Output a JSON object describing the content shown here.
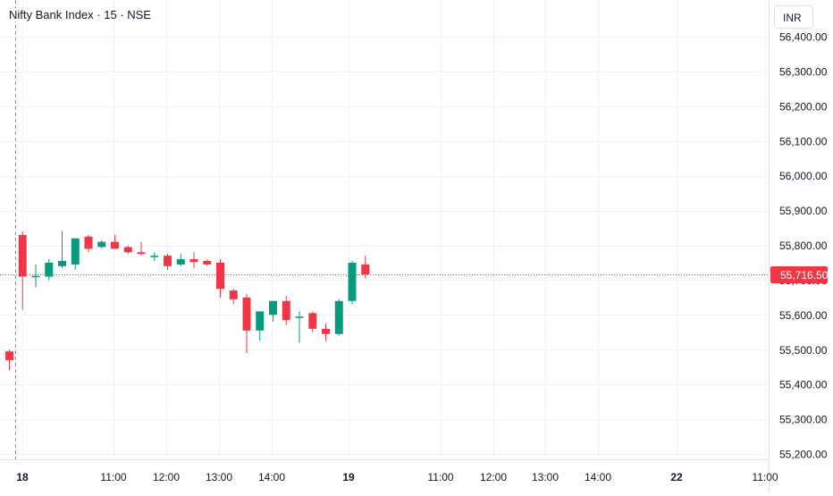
{
  "header": {
    "title": "Nifty Bank Index · 15 · NSE",
    "currency": "INR"
  },
  "colors": {
    "up": "#089981",
    "down": "#f23645",
    "grid": "#f0f3fa",
    "text": "#131722",
    "session_line": "#2962ff"
  },
  "chart_data": {
    "type": "candlestick",
    "title": "Nifty Bank Index · 15 · NSE",
    "ylim": [
      55150,
      56450
    ],
    "y_ticks": [
      {
        "value": 56400,
        "label": "56,400.00"
      },
      {
        "value": 56300,
        "label": "56,300.00"
      },
      {
        "value": 56200,
        "label": "56,200.00"
      },
      {
        "value": 56100,
        "label": "56,100.00"
      },
      {
        "value": 56000,
        "label": "56,000.00"
      },
      {
        "value": 55900,
        "label": "55,900.00"
      },
      {
        "value": 55800,
        "label": "55,800.00"
      },
      {
        "value": 55700,
        "label": "55,700.00"
      },
      {
        "value": 55600,
        "label": "55,600.00"
      },
      {
        "value": 55500,
        "label": "55,500.00"
      },
      {
        "value": 55400,
        "label": "55,400.00"
      },
      {
        "value": 55300,
        "label": "55,300.00"
      },
      {
        "value": 55200,
        "label": "55,200.00"
      }
    ],
    "x_ticks": [
      {
        "label": "18",
        "bold": true
      },
      {
        "label": "11:00",
        "bold": false
      },
      {
        "label": "12:00",
        "bold": false
      },
      {
        "label": "13:00",
        "bold": false
      },
      {
        "label": "14:00",
        "bold": false
      },
      {
        "label": "19",
        "bold": true
      },
      {
        "label": "11:00",
        "bold": false
      },
      {
        "label": "12:00",
        "bold": false
      },
      {
        "label": "13:00",
        "bold": false
      },
      {
        "label": "14:00",
        "bold": false
      },
      {
        "label": "22",
        "bold": true
      },
      {
        "label": "11:00",
        "bold": false
      }
    ],
    "last_price": 55716.5,
    "last_price_label": "55,716.50",
    "candles": [
      {
        "o": 55495,
        "h": 55500,
        "l": 55440,
        "c": 55470
      },
      {
        "o": 55830,
        "h": 55840,
        "l": 55615,
        "c": 55710
      },
      {
        "o": 55712,
        "h": 55745,
        "l": 55680,
        "c": 55712
      },
      {
        "o": 55710,
        "h": 55760,
        "l": 55700,
        "c": 55750
      },
      {
        "o": 55740,
        "h": 55840,
        "l": 55735,
        "c": 55755
      },
      {
        "o": 55745,
        "h": 55820,
        "l": 55730,
        "c": 55820
      },
      {
        "o": 55825,
        "h": 55830,
        "l": 55780,
        "c": 55790
      },
      {
        "o": 55795,
        "h": 55815,
        "l": 55790,
        "c": 55810
      },
      {
        "o": 55810,
        "h": 55830,
        "l": 55790,
        "c": 55790
      },
      {
        "o": 55795,
        "h": 55800,
        "l": 55775,
        "c": 55780
      },
      {
        "o": 55780,
        "h": 55810,
        "l": 55770,
        "c": 55775
      },
      {
        "o": 55770,
        "h": 55780,
        "l": 55755,
        "c": 55770
      },
      {
        "o": 55770,
        "h": 55775,
        "l": 55730,
        "c": 55740
      },
      {
        "o": 55745,
        "h": 55775,
        "l": 55740,
        "c": 55760
      },
      {
        "o": 55760,
        "h": 55780,
        "l": 55735,
        "c": 55752
      },
      {
        "o": 55755,
        "h": 55760,
        "l": 55740,
        "c": 55745
      },
      {
        "o": 55750,
        "h": 55760,
        "l": 55650,
        "c": 55675
      },
      {
        "o": 55670,
        "h": 55675,
        "l": 55630,
        "c": 55645
      },
      {
        "o": 55650,
        "h": 55660,
        "l": 55490,
        "c": 55555
      },
      {
        "o": 55555,
        "h": 55610,
        "l": 55525,
        "c": 55610
      },
      {
        "o": 55600,
        "h": 55640,
        "l": 55580,
        "c": 55640
      },
      {
        "o": 55640,
        "h": 55655,
        "l": 55570,
        "c": 55585
      },
      {
        "o": 55595,
        "h": 55610,
        "l": 55520,
        "c": 55595
      },
      {
        "o": 55605,
        "h": 55610,
        "l": 55550,
        "c": 55560
      },
      {
        "o": 55560,
        "h": 55575,
        "l": 55525,
        "c": 55545
      },
      {
        "o": 55545,
        "h": 55645,
        "l": 55540,
        "c": 55640
      },
      {
        "o": 55640,
        "h": 55755,
        "l": 55630,
        "c": 55750
      },
      {
        "o": 55745,
        "h": 55770,
        "l": 55705,
        "c": 55716.5
      }
    ]
  }
}
